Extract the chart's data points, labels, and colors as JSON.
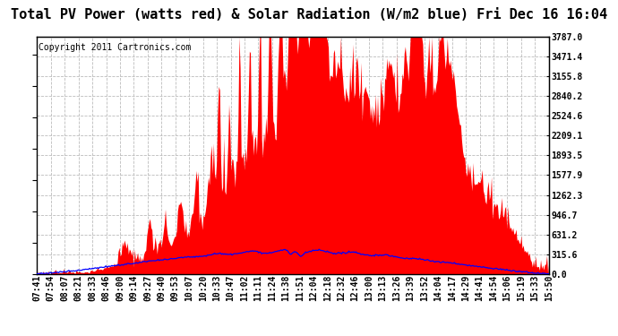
{
  "title": "Total PV Power (watts red) & Solar Radiation (W/m2 blue) Fri Dec 16 16:04",
  "copyright_text": "Copyright 2011 Cartronics.com",
  "bg_color": "#ffffff",
  "plot_bg_color": "#ffffff",
  "grid_color": "#bbbbbb",
  "red_color": "#ff0000",
  "blue_color": "#0000ff",
  "ylim": [
    0.0,
    3787.0
  ],
  "yticks": [
    0.0,
    315.6,
    631.2,
    946.7,
    1262.3,
    1577.9,
    1893.5,
    2209.1,
    2524.6,
    2840.2,
    3155.8,
    3471.4,
    3787.0
  ],
  "xtick_labels": [
    "07:41",
    "07:54",
    "08:07",
    "08:21",
    "08:33",
    "08:46",
    "09:00",
    "09:14",
    "09:27",
    "09:40",
    "09:53",
    "10:07",
    "10:20",
    "10:33",
    "10:47",
    "11:02",
    "11:11",
    "11:24",
    "11:38",
    "11:51",
    "12:04",
    "12:18",
    "12:32",
    "12:46",
    "13:00",
    "13:13",
    "13:26",
    "13:39",
    "13:52",
    "14:04",
    "14:17",
    "14:29",
    "14:41",
    "14:54",
    "15:06",
    "15:19",
    "15:33",
    "15:50"
  ],
  "title_fontsize": 11,
  "tick_fontsize": 7,
  "copyright_fontsize": 7
}
